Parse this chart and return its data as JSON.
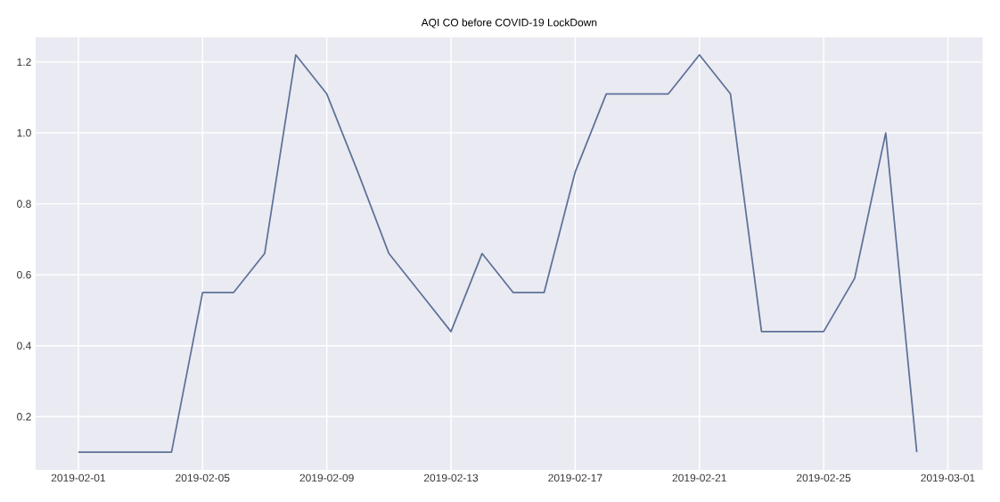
{
  "chart_data": {
    "type": "line",
    "title": "AQI CO before COVID-19 LockDown",
    "x": [
      "2019-02-01",
      "2019-02-02",
      "2019-02-03",
      "2019-02-04",
      "2019-02-05",
      "2019-02-06",
      "2019-02-07",
      "2019-02-08",
      "2019-02-09",
      "2019-02-10",
      "2019-02-11",
      "2019-02-12",
      "2019-02-13",
      "2019-02-14",
      "2019-02-15",
      "2019-02-16",
      "2019-02-17",
      "2019-02-18",
      "2019-02-19",
      "2019-02-20",
      "2019-02-21",
      "2019-02-22",
      "2019-02-23",
      "2019-02-24",
      "2019-02-25",
      "2019-02-26",
      "2019-02-27",
      "2019-02-28"
    ],
    "values": [
      0.1,
      0.1,
      0.1,
      0.1,
      0.55,
      0.55,
      0.66,
      1.22,
      1.11,
      0.89,
      0.66,
      0.55,
      0.44,
      0.66,
      0.55,
      0.55,
      0.89,
      1.11,
      1.11,
      1.11,
      1.22,
      1.11,
      0.44,
      0.44,
      0.44,
      0.59,
      1.0,
      0.1
    ],
    "color": "#5d7197",
    "xlim": [
      "2019-01-30T15:00",
      "2019-03-02T03:00"
    ],
    "ylim": [
      0.05,
      1.27
    ],
    "xticks": [
      "2019-02-01",
      "2019-02-05",
      "2019-02-09",
      "2019-02-13",
      "2019-02-17",
      "2019-02-21",
      "2019-02-25",
      "2019-03-01"
    ],
    "yticks": [
      0.2,
      0.4,
      0.6,
      0.8,
      {
        "value": 1,
        "label": "1.0"
      },
      1.2
    ],
    "grid": true
  }
}
